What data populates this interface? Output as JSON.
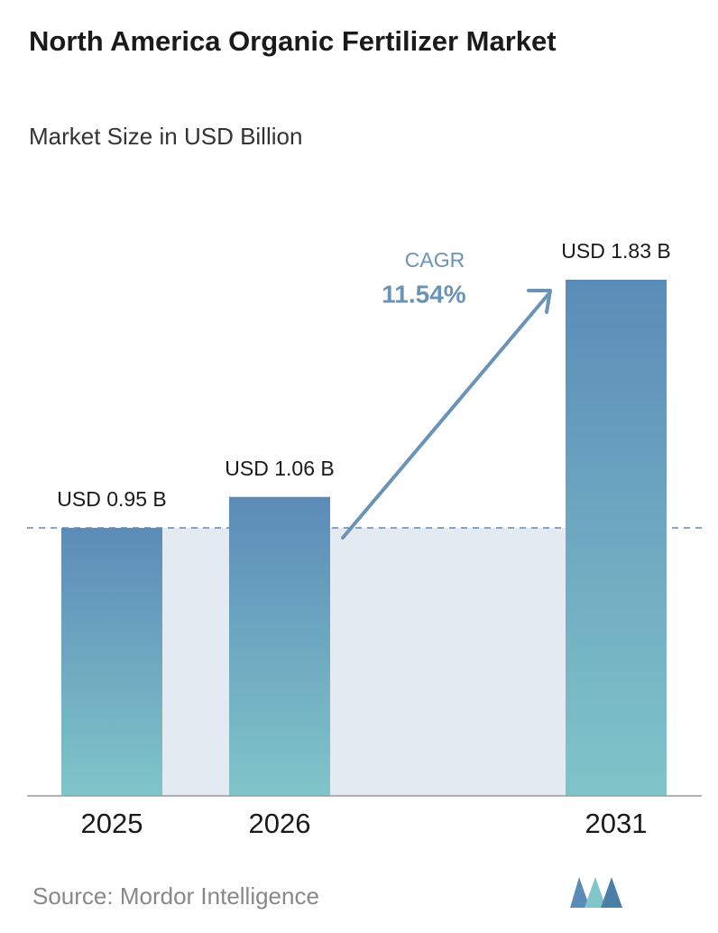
{
  "chart_data": {
    "type": "bar",
    "title": "North America Organic Fertilizer Market",
    "subtitle": "Market Size in USD Billion",
    "categories": [
      "2025",
      "2026",
      "2031"
    ],
    "values": [
      0.95,
      1.06,
      1.83
    ],
    "value_labels": [
      "USD 0.95 B",
      "USD 1.06 B",
      "USD 1.83 B"
    ],
    "colors": [
      "#5b8cb8",
      "#80c5c9"
    ],
    "annotations": {
      "cagr_label": "CAGR",
      "cagr_value": "11.54%"
    },
    "source": "Source:  Mordor Intelligence"
  }
}
